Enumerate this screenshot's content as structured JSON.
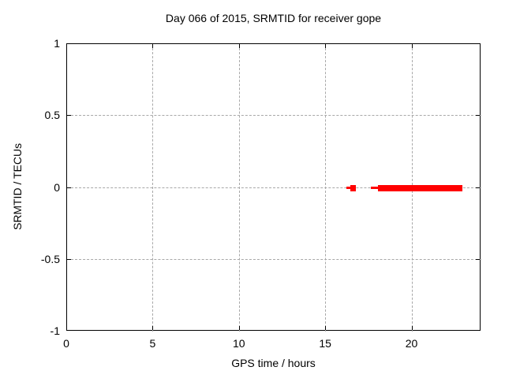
{
  "chart_data": {
    "type": "scatter",
    "title": "Day 066 of 2015, SRMTID for receiver gope",
    "xlabel": "GPS time / hours",
    "ylabel": "SRMTID / TECUs",
    "xlim": [
      0,
      24
    ],
    "ylim": [
      -1,
      1
    ],
    "xticks": [
      {
        "value": 0,
        "label": "0"
      },
      {
        "value": 5,
        "label": "5"
      },
      {
        "value": 10,
        "label": "10"
      },
      {
        "value": 15,
        "label": "15"
      },
      {
        "value": 20,
        "label": "20"
      }
    ],
    "yticks": [
      {
        "value": 1,
        "label": "1"
      },
      {
        "value": 0.5,
        "label": "0.5"
      },
      {
        "value": 0,
        "label": "0"
      },
      {
        "value": -0.5,
        "label": "-0.5"
      },
      {
        "value": -1,
        "label": "-1"
      }
    ],
    "grid": true,
    "legend": "none",
    "series": [
      {
        "name": "SRMTID",
        "color": "#ff0000",
        "marker": "square",
        "segments": [
          {
            "x_start": 16.2,
            "x_end": 16.4,
            "y": 0,
            "weight": "thin"
          },
          {
            "x_start": 16.4,
            "x_end": 16.75,
            "y": 0,
            "weight": "thick"
          },
          {
            "x_start": 17.6,
            "x_end": 18.0,
            "y": 0,
            "weight": "thin"
          },
          {
            "x_start": 18.0,
            "x_end": 22.9,
            "y": 0,
            "weight": "thick"
          }
        ]
      }
    ],
    "colors": {
      "background": "#ffffff",
      "axis": "#000000",
      "grid": "#a8a8a8",
      "data": "#ff0000"
    }
  }
}
